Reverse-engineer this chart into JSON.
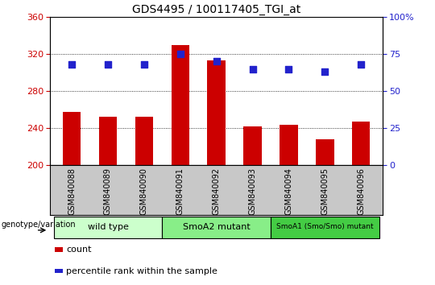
{
  "title": "GDS4495 / 100117405_TGI_at",
  "samples": [
    "GSM840088",
    "GSM840089",
    "GSM840090",
    "GSM840091",
    "GSM840092",
    "GSM840093",
    "GSM840094",
    "GSM840095",
    "GSM840096"
  ],
  "counts": [
    258,
    252,
    252,
    330,
    313,
    242,
    244,
    228,
    247
  ],
  "percentile_ranks": [
    68,
    68,
    68,
    75,
    70,
    65,
    65,
    63,
    68
  ],
  "ylim_left": [
    200,
    360
  ],
  "ylim_right": [
    0,
    100
  ],
  "yticks_left": [
    200,
    240,
    280,
    320,
    360
  ],
  "yticks_right": [
    0,
    25,
    50,
    75,
    100
  ],
  "bar_color": "#cc0000",
  "dot_color": "#2222cc",
  "grid_color": "#000000",
  "groups": [
    {
      "label": "wild type",
      "start": 0,
      "end": 3,
      "color": "#ccffcc"
    },
    {
      "label": "SmoA2 mutant",
      "start": 3,
      "end": 6,
      "color": "#88ee88"
    },
    {
      "label": "SmoA1 (Smo/Smo) mutant",
      "start": 6,
      "end": 9,
      "color": "#44cc44"
    }
  ],
  "legend_items": [
    {
      "label": "count",
      "color": "#cc0000"
    },
    {
      "label": "percentile rank within the sample",
      "color": "#2222cc"
    }
  ],
  "xlabel_label": "genotype/variation",
  "tick_label_color_left": "#cc0000",
  "tick_label_color_right": "#2222cc",
  "bar_width": 0.5,
  "dot_size": 35,
  "xtick_bg_color": "#c8c8c8"
}
